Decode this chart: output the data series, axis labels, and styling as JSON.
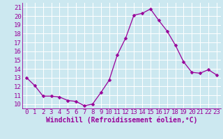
{
  "x": [
    0,
    1,
    2,
    3,
    4,
    5,
    6,
    7,
    8,
    9,
    10,
    11,
    12,
    13,
    14,
    15,
    16,
    17,
    18,
    19,
    20,
    21,
    22,
    23
  ],
  "y": [
    13,
    12.1,
    10.9,
    10.9,
    10.8,
    10.4,
    10.3,
    9.8,
    10.0,
    11.3,
    12.7,
    15.6,
    17.5,
    20.1,
    20.3,
    20.8,
    19.5,
    18.3,
    16.7,
    14.8,
    13.6,
    13.5,
    13.9,
    13.3
  ],
  "line_color": "#990099",
  "marker_color": "#990099",
  "bg_color": "#cce8f0",
  "grid_color": "#ffffff",
  "xlabel": "Windchill (Refroidissement éolien,°C)",
  "xlabel_color": "#990099",
  "tick_color": "#990099",
  "ylim": [
    9.5,
    21.5
  ],
  "yticks": [
    10,
    11,
    12,
    13,
    14,
    15,
    16,
    17,
    18,
    19,
    20,
    21
  ],
  "xticks": [
    0,
    1,
    2,
    3,
    4,
    5,
    6,
    7,
    8,
    9,
    10,
    11,
    12,
    13,
    14,
    15,
    16,
    17,
    18,
    19,
    20,
    21,
    22,
    23
  ],
  "font_size": 6.5,
  "marker_size": 2.5,
  "linewidth": 0.9
}
